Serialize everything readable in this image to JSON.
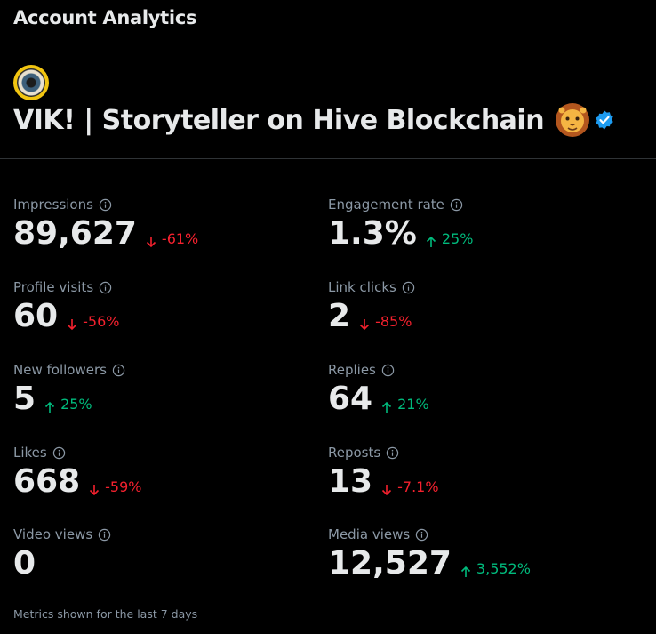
{
  "header": {
    "title": "Account Analytics"
  },
  "account": {
    "name": "VIK! | Storyteller on Hive Blockchain",
    "avatar_icon": "eye-avatar",
    "emoji_icon": "lion-face-icon",
    "verified_icon": "verified-badge-icon",
    "verified_color": "#1d9bf0"
  },
  "metrics": {
    "impressions": {
      "label": "Impressions",
      "value": "89,627",
      "delta": "-61%",
      "direction": "down"
    },
    "engagement_rate": {
      "label": "Engagement rate",
      "value": "1.3%",
      "delta": "25%",
      "direction": "up"
    },
    "profile_visits": {
      "label": "Profile visits",
      "value": "60",
      "delta": "-56%",
      "direction": "down"
    },
    "link_clicks": {
      "label": "Link clicks",
      "value": "2",
      "delta": "-85%",
      "direction": "down"
    },
    "new_followers": {
      "label": "New followers",
      "value": "5",
      "delta": "25%",
      "direction": "up"
    },
    "replies": {
      "label": "Replies",
      "value": "64",
      "delta": "21%",
      "direction": "up"
    },
    "likes": {
      "label": "Likes",
      "value": "668",
      "delta": "-59%",
      "direction": "down"
    },
    "reposts": {
      "label": "Reposts",
      "value": "13",
      "delta": "-7.1%",
      "direction": "down"
    },
    "video_views": {
      "label": "Video views",
      "value": "0"
    },
    "media_views": {
      "label": "Media views",
      "value": "12,527",
      "delta": "3,552%",
      "direction": "up"
    }
  },
  "footer": {
    "note": "Metrics shown for the last 7 days"
  },
  "colors": {
    "background": "#000000",
    "text_primary": "#e7e9ea",
    "text_secondary": "#8b98a5",
    "negative": "#f4212e",
    "positive": "#00ba7c",
    "divider": "#2f3336"
  }
}
